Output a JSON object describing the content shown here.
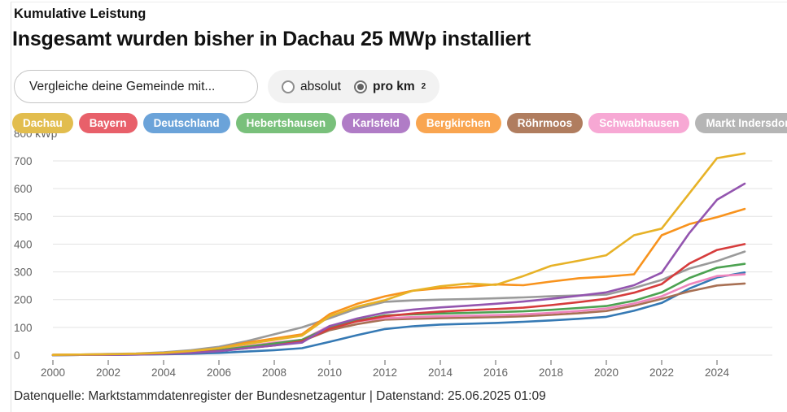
{
  "header": {
    "eyebrow": "Kumulative Leistung",
    "title": "Insgesamt wurden bisher in Dachau 25 MWp installiert"
  },
  "controls": {
    "compare_placeholder": "Vergleiche deine Gemeinde mit...",
    "options": [
      {
        "label": "absolut",
        "selected": false
      },
      {
        "label": "pro km",
        "sup": "2",
        "selected": true
      }
    ]
  },
  "legend": [
    {
      "name": "Dachau",
      "pill_color": "#e2bd4e",
      "line_color": "#e7b227"
    },
    {
      "name": "Bayern",
      "pill_color": "#e8606a",
      "line_color": "#d63c3c"
    },
    {
      "name": "Deutschland",
      "pill_color": "#6ba3d9",
      "line_color": "#3579b4"
    },
    {
      "name": "Hebertshausen",
      "pill_color": "#79c07b",
      "line_color": "#4ca251"
    },
    {
      "name": "Karlsfeld",
      "pill_color": "#b07cc6",
      "line_color": "#9355af"
    },
    {
      "name": "Bergkirchen",
      "pill_color": "#f9a550",
      "line_color": "#f8931d"
    },
    {
      "name": "Röhrmoos",
      "pill_color": "#b07d5f",
      "line_color": "#a87054"
    },
    {
      "name": "Schwabhausen",
      "pill_color": "#f7a8d4",
      "line_color": "#ee85bd"
    },
    {
      "name": "Markt Indersdorf",
      "pill_color": "#b5b5b5",
      "line_color": "#9a9a9a"
    }
  ],
  "chart_data": {
    "type": "line",
    "title": "Kumulative Leistung",
    "unit": "kWp",
    "y_axis_top_label": "800 kWp",
    "ylim": [
      0,
      800
    ],
    "y_ticks": [
      700,
      600,
      500,
      400,
      300,
      200,
      100,
      0
    ],
    "x_ticks": [
      2000,
      2002,
      2004,
      2006,
      2008,
      2010,
      2012,
      2014,
      2016,
      2018,
      2020,
      2022,
      2024
    ],
    "x": [
      2000,
      2001,
      2002,
      2003,
      2004,
      2005,
      2006,
      2007,
      2008,
      2009,
      2010,
      2011,
      2012,
      2013,
      2014,
      2015,
      2016,
      2017,
      2018,
      2019,
      2020,
      2021,
      2022,
      2023,
      2024,
      2025
    ],
    "grid": true,
    "legend_position": "top",
    "series": [
      {
        "name": "Dachau",
        "values": [
          1,
          2,
          3,
          5,
          8,
          15,
          25,
          40,
          55,
          70,
          140,
          175,
          198,
          232,
          248,
          258,
          253,
          285,
          322,
          340,
          360,
          432,
          456,
          583,
          710,
          727
        ]
      },
      {
        "name": "Bayern",
        "values": [
          1,
          1,
          2,
          3,
          5,
          9,
          15,
          25,
          35,
          50,
          95,
          122,
          140,
          150,
          157,
          162,
          166,
          171,
          180,
          191,
          203,
          225,
          256,
          330,
          379,
          400
        ]
      },
      {
        "name": "Deutschland",
        "values": [
          0,
          1,
          1,
          2,
          3,
          5,
          8,
          13,
          18,
          25,
          48,
          72,
          94,
          104,
          110,
          113,
          116,
          120,
          125,
          131,
          138,
          160,
          188,
          240,
          280,
          298
        ]
      },
      {
        "name": "Hebertshausen",
        "values": [
          0,
          1,
          2,
          3,
          5,
          10,
          18,
          30,
          42,
          55,
          100,
          125,
          143,
          147,
          150,
          152,
          155,
          158,
          163,
          170,
          177,
          196,
          226,
          278,
          315,
          329
        ]
      },
      {
        "name": "Karlsfeld",
        "values": [
          0,
          1,
          1,
          2,
          4,
          8,
          14,
          25,
          35,
          45,
          105,
          132,
          153,
          164,
          172,
          178,
          185,
          193,
          203,
          214,
          226,
          252,
          297,
          440,
          560,
          618
        ]
      },
      {
        "name": "Bergkirchen",
        "values": [
          1,
          2,
          3,
          5,
          8,
          14,
          25,
          45,
          60,
          75,
          148,
          185,
          212,
          232,
          241,
          246,
          255,
          252,
          265,
          277,
          283,
          291,
          432,
          472,
          497,
          527
        ]
      },
      {
        "name": "Röhrmoos",
        "values": [
          0,
          1,
          2,
          3,
          5,
          9,
          16,
          28,
          40,
          50,
          90,
          112,
          128,
          131,
          133,
          135,
          137,
          140,
          145,
          151,
          159,
          178,
          203,
          230,
          251,
          258
        ]
      },
      {
        "name": "Schwabhausen",
        "values": [
          1,
          1,
          2,
          4,
          6,
          11,
          20,
          32,
          45,
          55,
          105,
          122,
          133,
          137,
          140,
          142,
          144,
          147,
          152,
          159,
          168,
          186,
          212,
          255,
          285,
          291
        ]
      },
      {
        "name": "Markt Indersdorf",
        "values": [
          1,
          2,
          4,
          6,
          10,
          18,
          30,
          50,
          75,
          100,
          133,
          168,
          192,
          197,
          200,
          202,
          205,
          208,
          212,
          215,
          218,
          242,
          271,
          312,
          339,
          373
        ]
      }
    ]
  },
  "footer": {
    "text": "Datenquelle: Marktstammdatenregister der Bundesnetzagentur | Datenstand: 25.06.2025 01:09"
  }
}
